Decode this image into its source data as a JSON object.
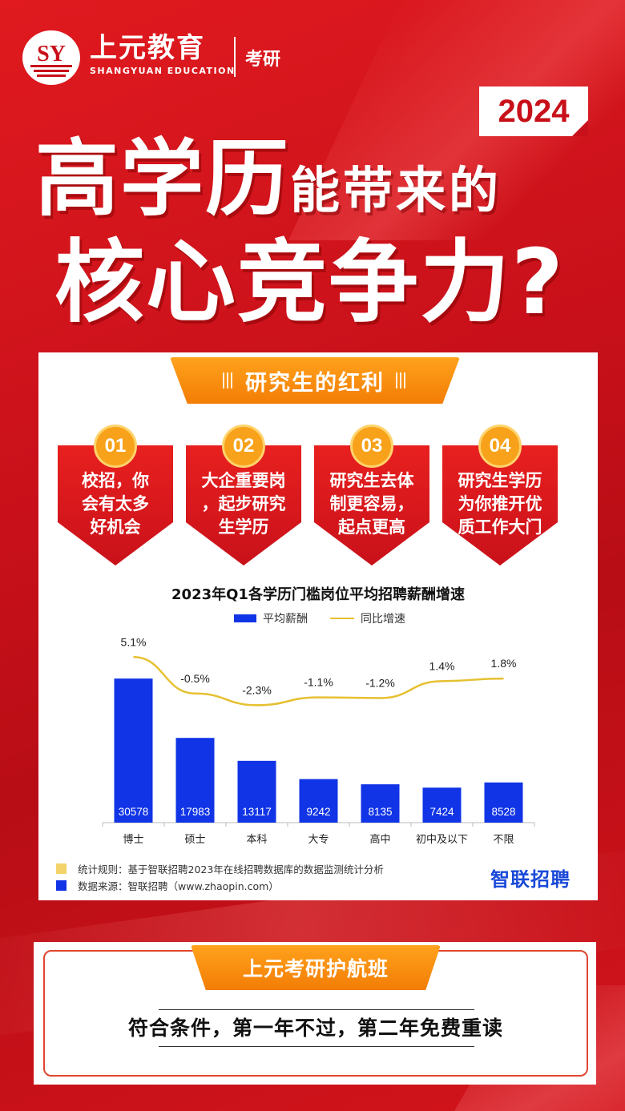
{
  "brand": {
    "name": "上元教育",
    "name_en": "SHANGYUAN EDUCATION",
    "tag": "考研",
    "logo_text": "SY"
  },
  "year": "2024",
  "headline": {
    "part1_big": "高学历",
    "part1_small": "能带来的",
    "part2": "核心竞争力?"
  },
  "section_title": "研究生的红利",
  "benefits": [
    {
      "num": "01",
      "lines": [
        "校招，你",
        "会有太多",
        "好机会"
      ]
    },
    {
      "num": "02",
      "lines": [
        "大企重要岗",
        "，起步研究",
        "生学历"
      ]
    },
    {
      "num": "03",
      "lines": [
        "研究生去体",
        "制更容易，",
        "起点更高"
      ]
    },
    {
      "num": "04",
      "lines": [
        "研究生学历",
        "为你推开优",
        "质工作大门"
      ]
    }
  ],
  "chart_data": {
    "type": "bar",
    "title": "2023年Q1各学历门槛岗位平均招聘薪酬增速",
    "categories": [
      "博士",
      "硕士",
      "本科",
      "大专",
      "高中",
      "初中及以下",
      "不限"
    ],
    "series": [
      {
        "name": "平均薪酬",
        "type": "bar",
        "color": "#1034e6",
        "values": [
          30578,
          17983,
          13117,
          9242,
          8135,
          7424,
          8528
        ]
      },
      {
        "name": "同比增速",
        "type": "line",
        "color": "#e6c030",
        "values": [
          5.1,
          -0.5,
          -2.3,
          -1.1,
          -1.2,
          1.4,
          1.8
        ],
        "labels": [
          "5.1%",
          "-0.5%",
          "-2.3%",
          "-1.1%",
          "-1.2%",
          "1.4%",
          "1.8%"
        ]
      }
    ],
    "legend": "top-center"
  },
  "footnotes": [
    {
      "text": "统计规则：基于智联招聘2023年在线招聘数据库的数据监测统计分析",
      "color": "#f3d36a"
    },
    {
      "text": "数据来源：智联招聘（www.zhaopin.com）",
      "color": "#1034e6"
    }
  ],
  "source_logo": "智联招聘",
  "promo": {
    "title": "上元考研护航班",
    "text": "符合条件，第一年不过，第二年免费重读"
  }
}
